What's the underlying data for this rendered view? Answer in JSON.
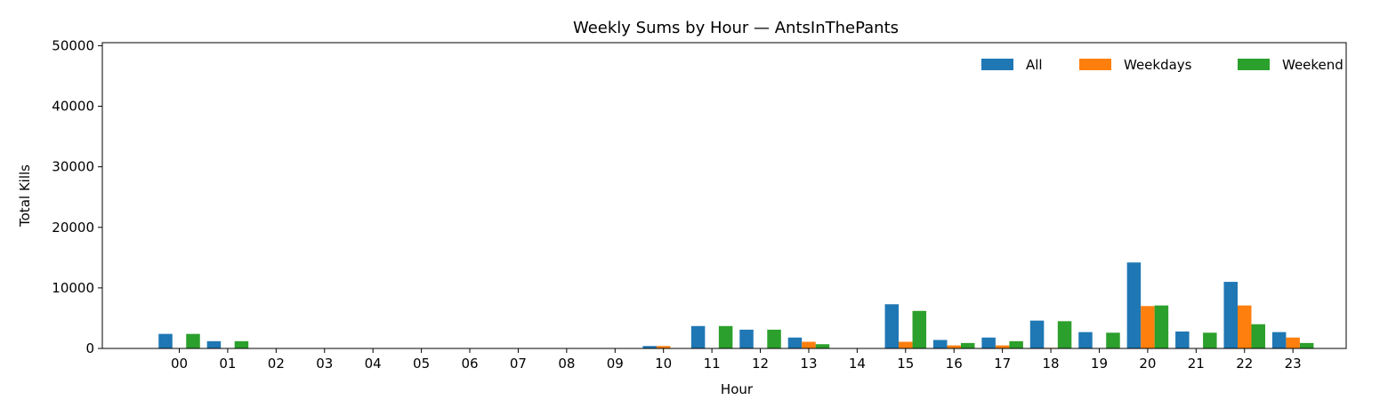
{
  "chart_data": {
    "type": "bar",
    "title": "Weekly Sums by Hour — AntsInThePants",
    "xlabel": "Hour",
    "ylabel": "Total Kills",
    "categories": [
      "00",
      "01",
      "02",
      "03",
      "04",
      "05",
      "06",
      "07",
      "08",
      "09",
      "10",
      "11",
      "12",
      "13",
      "14",
      "15",
      "16",
      "17",
      "18",
      "19",
      "20",
      "21",
      "22",
      "23"
    ],
    "ylim": [
      0,
      50500
    ],
    "yticks": [
      "0",
      "10000",
      "20000",
      "30000",
      "40000",
      "50000"
    ],
    "ytick_values": [
      0,
      10000,
      20000,
      30000,
      40000,
      50000
    ],
    "grid": false,
    "legend_position": "top-right",
    "series": [
      {
        "name": "All",
        "color": "#1f77b4",
        "values": [
          2400,
          1200,
          0,
          0,
          0,
          0,
          0,
          0,
          0,
          0,
          400,
          3700,
          3100,
          1800,
          0,
          7300,
          1400,
          1800,
          4600,
          2700,
          14200,
          2800,
          11000,
          2700
        ]
      },
      {
        "name": "Weekdays",
        "color": "#ff7f0e",
        "values": [
          0,
          0,
          0,
          0,
          0,
          0,
          0,
          0,
          0,
          0,
          400,
          0,
          0,
          1100,
          0,
          1100,
          500,
          500,
          100,
          0,
          7000,
          0,
          7100,
          1800
        ]
      },
      {
        "name": "Weekend",
        "color": "#2ca02c",
        "values": [
          2400,
          1200,
          0,
          0,
          0,
          0,
          0,
          0,
          0,
          0,
          0,
          3700,
          3100,
          700,
          0,
          6200,
          900,
          1200,
          4500,
          2600,
          7100,
          2600,
          4000,
          900
        ]
      }
    ]
  }
}
